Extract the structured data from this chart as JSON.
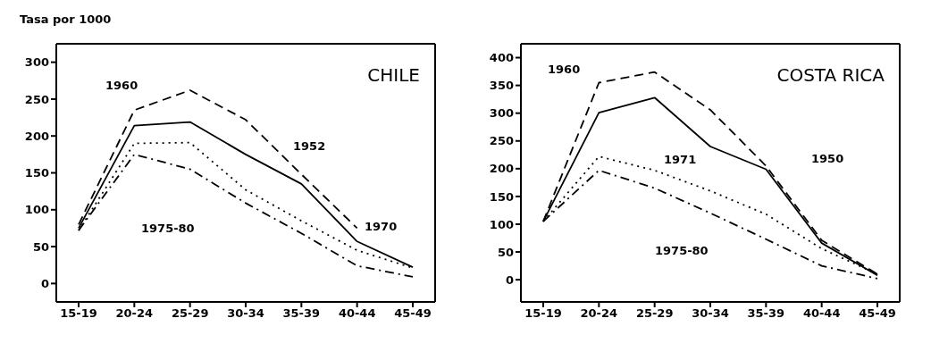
{
  "chart_data": [
    {
      "type": "line",
      "title": "CHILE",
      "ylabel": "Tasa por 1000",
      "categories": [
        "15-19",
        "20-24",
        "25-29",
        "30-34",
        "35-39",
        "40-44",
        "45-49"
      ],
      "ylim": [
        -25,
        325
      ],
      "yticks": [
        0,
        50,
        100,
        150,
        200,
        250,
        300
      ],
      "marker": "none",
      "series": [
        {
          "color": "#000000",
          "line_style": "solid",
          "values": [
            75,
            214,
            219,
            175,
            135,
            57,
            22
          ]
        },
        {
          "color": "#000000",
          "line_style": "dashed",
          "values": [
            80,
            235,
            262,
            222,
            148,
            75,
            null
          ]
        },
        {
          "color": "#000000",
          "line_style": "dotted",
          "values": [
            72,
            190,
            191,
            127,
            85,
            45,
            21
          ]
        },
        {
          "color": "#000000",
          "line_style": "dashdot",
          "values": [
            72,
            175,
            155,
            109,
            68,
            24,
            9
          ]
        }
      ],
      "annotations": [
        "1960",
        "1952",
        "1975-80",
        "1970"
      ]
    },
    {
      "type": "line",
      "title": "COSTA RICA",
      "categories": [
        "15-19",
        "20-24",
        "25-29",
        "30-34",
        "35-39",
        "40-44",
        "45-49"
      ],
      "ylim": [
        -40,
        425
      ],
      "yticks": [
        0,
        50,
        100,
        150,
        200,
        250,
        300,
        350,
        400
      ],
      "marker": "none",
      "series": [
        {
          "color": "#000000",
          "line_style": "solid",
          "values": [
            105,
            301,
            328,
            240,
            199,
            66,
            8
          ]
        },
        {
          "color": "#000000",
          "line_style": "dashed",
          "values": [
            105,
            355,
            374,
            306,
            205,
            71,
            10
          ]
        },
        {
          "color": "#000000",
          "line_style": "dotted",
          "values": [
            105,
            222,
            197,
            160,
            118,
            56,
            10
          ]
        },
        {
          "color": "#000000",
          "line_style": "dashdot",
          "values": [
            105,
            197,
            165,
            120,
            73,
            25,
            2
          ]
        }
      ],
      "annotations": [
        "1960",
        "1971",
        "1950",
        "1975-80"
      ]
    }
  ]
}
